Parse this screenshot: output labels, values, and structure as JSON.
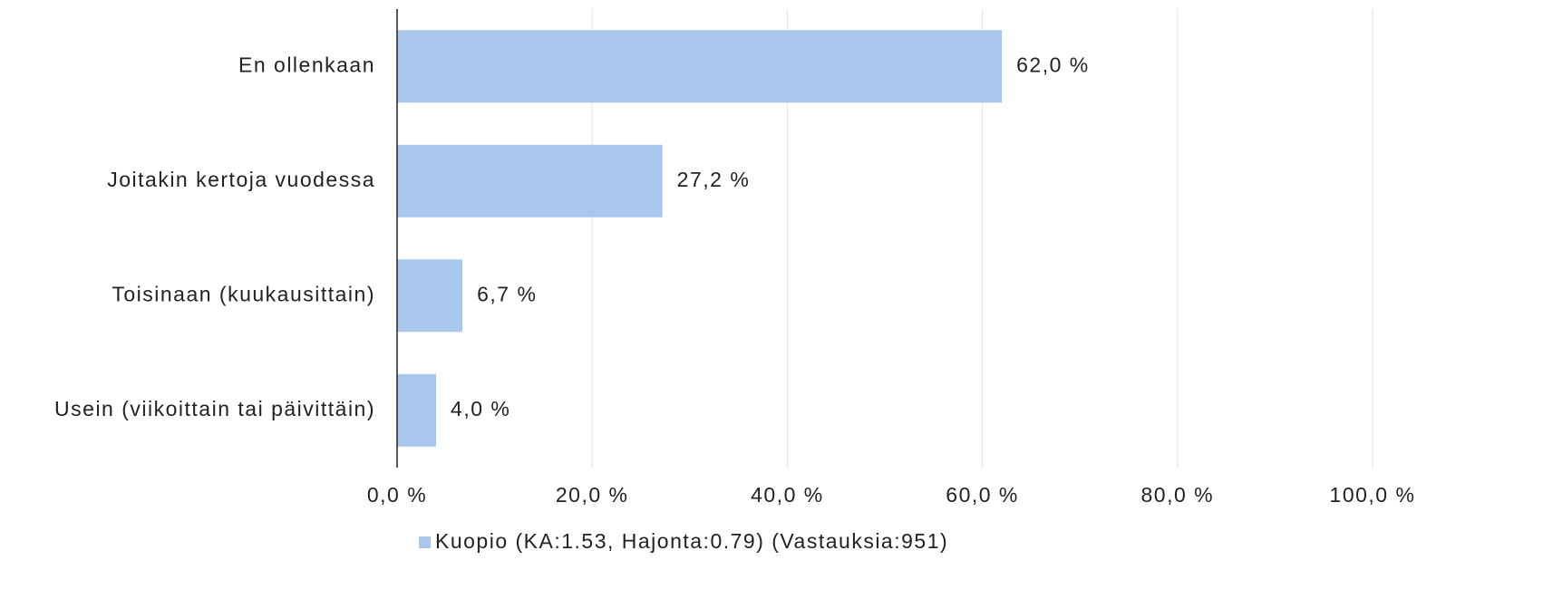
{
  "chart_data": {
    "type": "bar",
    "orientation": "horizontal",
    "categories": [
      "En ollenkaan",
      "Joitakin kertoja vuodessa",
      "Toisinaan (kuukausittain)",
      "Usein (viikoittain tai päivittäin)"
    ],
    "series": [
      {
        "name": "Kuopio (KA:1.53, Hajonta:0.79) (Vastauksia:951)",
        "color": "#a9c7ed",
        "values": [
          62.0,
          27.2,
          6.7,
          4.0
        ],
        "value_labels": [
          "62,0 %",
          "27,2 %",
          "6,7 %",
          "4,0 %"
        ]
      }
    ],
    "xlim": [
      0,
      100
    ],
    "xticks": [
      {
        "value": 0,
        "label": "0,0 %"
      },
      {
        "value": 20,
        "label": "20,0 %"
      },
      {
        "value": 40,
        "label": "40,0 %"
      },
      {
        "value": 60,
        "label": "60,0 %"
      },
      {
        "value": 80,
        "label": "80,0 %"
      },
      {
        "value": 100,
        "label": "100,0 %"
      }
    ],
    "grid": true,
    "legend": "bottom"
  }
}
